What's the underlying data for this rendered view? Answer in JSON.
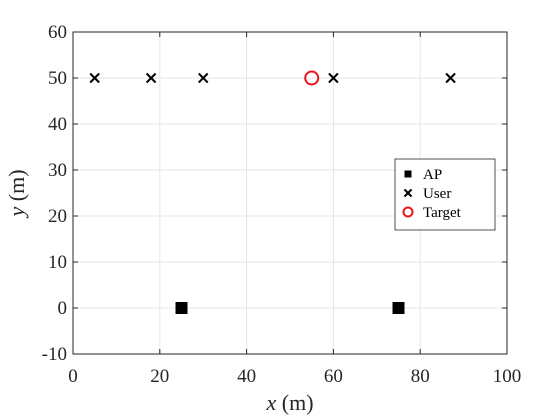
{
  "chart_data": {
    "type": "scatter",
    "title": "",
    "xlabel_var": "x",
    "xlabel_unit": "(m)",
    "ylabel_var": "y",
    "ylabel_unit": "(m)",
    "xlim": [
      0,
      100
    ],
    "ylim": [
      -10,
      60
    ],
    "xticks": [
      0,
      20,
      40,
      60,
      80,
      100
    ],
    "yticks": [
      -10,
      0,
      10,
      20,
      30,
      40,
      50,
      60
    ],
    "grid": true,
    "legend_position": "right",
    "series": [
      {
        "name": "AP",
        "marker": "square",
        "color": "#000000",
        "points": [
          [
            25,
            0
          ],
          [
            75,
            0
          ]
        ]
      },
      {
        "name": "User",
        "marker": "x",
        "color": "#000000",
        "points": [
          [
            5,
            50
          ],
          [
            18,
            50
          ],
          [
            30,
            50
          ],
          [
            60,
            50
          ],
          [
            87,
            50
          ]
        ]
      },
      {
        "name": "Target",
        "marker": "circle",
        "color": "#e8141e",
        "points": [
          [
            55,
            50
          ]
        ]
      }
    ]
  }
}
